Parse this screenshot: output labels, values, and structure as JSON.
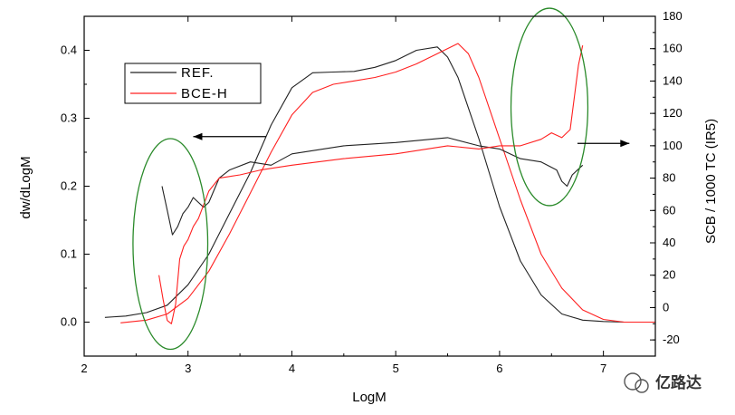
{
  "chart_data": {
    "type": "line",
    "xlabel": "LogM",
    "ylabel_left": "dw/dLogM",
    "ylabel_right": "SCB / 1000 TC (IR5)",
    "xlim": [
      2,
      7.5
    ],
    "ylim_left": [
      -0.05,
      0.45
    ],
    "ylim_right": [
      -30,
      180
    ],
    "x_ticks": [
      2,
      3,
      4,
      5,
      6,
      7
    ],
    "y_left_ticks": [
      0.0,
      0.1,
      0.2,
      0.3,
      0.4
    ],
    "y_left_tick_labels": [
      "0.0",
      "0.1",
      "0.2",
      "0.3",
      "0.4"
    ],
    "y_right_ticks": [
      -20,
      0,
      20,
      40,
      60,
      80,
      100,
      120,
      140,
      160,
      180
    ],
    "legend_position": "top-left",
    "colors": {
      "ref": "#222222",
      "bce": "#ff2020",
      "ellipse": "#2a8a2a",
      "arrow": "#000000"
    },
    "series": [
      {
        "name": "REF.",
        "axis": "left",
        "color": "#222222",
        "x": [
          2.2,
          2.4,
          2.6,
          2.8,
          3.0,
          3.2,
          3.4,
          3.6,
          3.8,
          4.0,
          4.2,
          4.4,
          4.6,
          4.8,
          5.0,
          5.2,
          5.4,
          5.5,
          5.6,
          5.8,
          6.0,
          6.2,
          6.4,
          6.6,
          6.8,
          7.0,
          7.2,
          7.5
        ],
        "values": [
          0.007,
          0.009,
          0.014,
          0.025,
          0.055,
          0.1,
          0.16,
          0.22,
          0.29,
          0.345,
          0.367,
          0.368,
          0.369,
          0.375,
          0.385,
          0.4,
          0.405,
          0.39,
          0.36,
          0.27,
          0.17,
          0.09,
          0.04,
          0.012,
          0.003,
          0.001,
          0.0,
          0.0
        ]
      },
      {
        "name": "BCE-H",
        "axis": "left",
        "color": "#ff2020",
        "x": [
          2.35,
          2.6,
          2.8,
          3.0,
          3.2,
          3.4,
          3.6,
          3.8,
          4.0,
          4.2,
          4.4,
          4.6,
          4.8,
          5.0,
          5.2,
          5.4,
          5.6,
          5.7,
          5.8,
          6.0,
          6.2,
          6.4,
          6.6,
          6.8,
          7.0,
          7.2,
          7.5
        ],
        "values": [
          -0.001,
          0.003,
          0.012,
          0.035,
          0.075,
          0.13,
          0.19,
          0.25,
          0.305,
          0.338,
          0.35,
          0.355,
          0.36,
          0.368,
          0.38,
          0.395,
          0.41,
          0.395,
          0.36,
          0.27,
          0.18,
          0.1,
          0.05,
          0.018,
          0.004,
          0.0,
          0.0
        ]
      },
      {
        "name": "",
        "axis": "right",
        "color": "#222222",
        "x": [
          2.75,
          2.8,
          2.85,
          2.9,
          2.95,
          3.0,
          3.05,
          3.1,
          3.15,
          3.2,
          3.3,
          3.4,
          3.6,
          3.8,
          4.0,
          4.5,
          5.0,
          5.5,
          5.8,
          6.0,
          6.2,
          6.4,
          6.55,
          6.6,
          6.65,
          6.7,
          6.8
        ],
        "values": [
          75,
          60,
          45,
          50,
          58,
          62,
          68,
          65,
          62,
          65,
          80,
          85,
          90,
          88,
          95,
          100,
          102,
          105,
          100,
          98,
          92,
          90,
          85,
          78,
          75,
          82,
          88
        ]
      },
      {
        "name": "",
        "axis": "right",
        "color": "#ff2020",
        "x": [
          2.72,
          2.76,
          2.8,
          2.84,
          2.88,
          2.92,
          2.96,
          3.0,
          3.05,
          3.1,
          3.2,
          3.3,
          3.5,
          3.7,
          4.0,
          4.5,
          5.0,
          5.5,
          5.8,
          6.0,
          6.2,
          6.4,
          6.5,
          6.6,
          6.68,
          6.72,
          6.76,
          6.8
        ],
        "values": [
          20,
          5,
          -8,
          -10,
          2,
          30,
          38,
          42,
          50,
          55,
          72,
          80,
          82,
          85,
          88,
          92,
          95,
          100,
          98,
          100,
          100,
          104,
          108,
          105,
          110,
          130,
          150,
          162
        ]
      }
    ],
    "annotations": [
      {
        "type": "ellipse",
        "cx": 2.83,
        "cy_left": 0.115,
        "rx": 0.36,
        "ry_left": 0.155,
        "color": "#2a8a2a"
      },
      {
        "type": "ellipse",
        "cx": 6.48,
        "cy_right": 124,
        "rx": 0.37,
        "ry_right": 61,
        "color": "#2a8a2a"
      },
      {
        "type": "arrow",
        "from_x": 3.75,
        "to_x": 3.05,
        "y_left": 0.273,
        "direction": "left"
      },
      {
        "type": "arrow",
        "from_x": 6.75,
        "to_x": 7.25,
        "y_left": 0.263,
        "direction": "right"
      }
    ]
  },
  "watermark": {
    "text": "亿路达",
    "icon": "wechat-icon"
  }
}
